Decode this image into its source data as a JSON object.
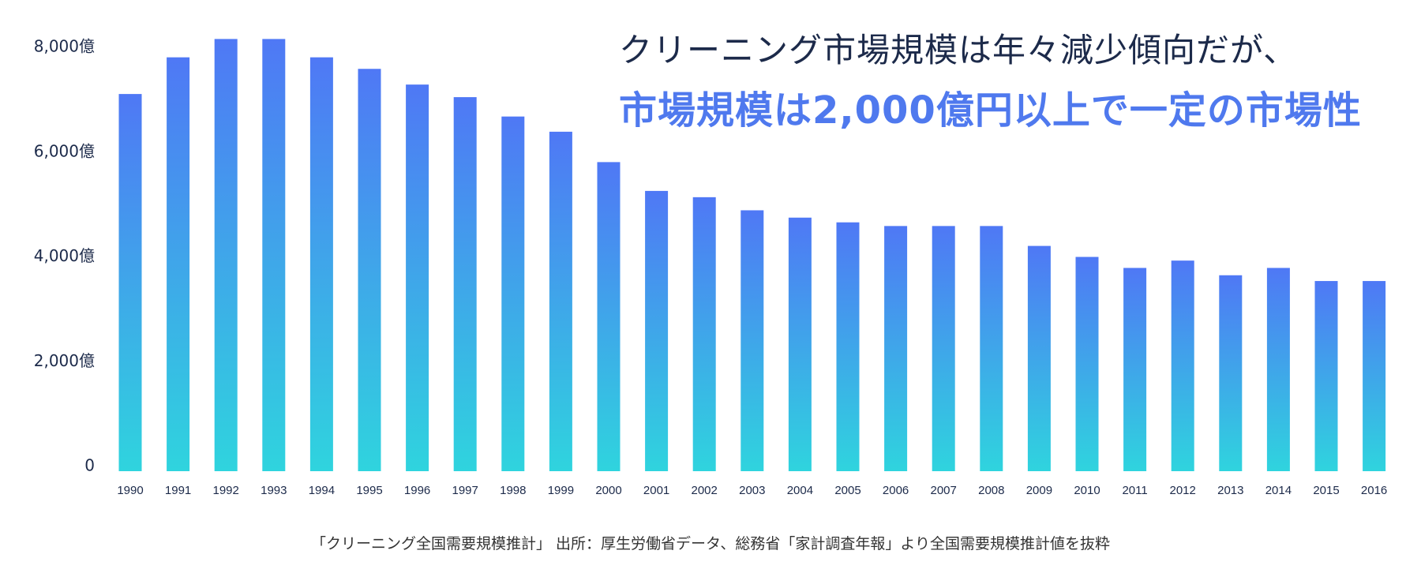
{
  "headline": {
    "line1": "クリーニング市場規模は年々減少傾向だが、",
    "line2": "市場規模は2,000億円以上で一定の市場性"
  },
  "source_note": "「クリーニング全国需要規模推計」 出所：厚生労働省データ、総務省「家計調査年報」より全国需要規模推計値を抜粋",
  "colors": {
    "headline_accent": "#4f79ee",
    "bar_top": "#4f78f5",
    "bar_bottom": "#2fd4de"
  },
  "chart_data": {
    "type": "bar",
    "title": "",
    "xlabel": "",
    "ylabel": "",
    "ylim": [
      0,
      8000
    ],
    "yticks": [
      0,
      2000,
      4000,
      6000,
      8000
    ],
    "ytick_labels": [
      "0",
      "2,000億",
      "4,000億",
      "6,000億",
      "8,000億"
    ],
    "grid": false,
    "categories": [
      "1990",
      "1991",
      "1992",
      "1993",
      "1994",
      "1995",
      "1996",
      "1997",
      "1998",
      "1999",
      "2000",
      "2001",
      "2002",
      "2003",
      "2004",
      "2005",
      "2006",
      "2007",
      "2008",
      "2009",
      "2010",
      "2011",
      "2012",
      "2013",
      "2014",
      "2015",
      "2016"
    ],
    "values": [
      7200,
      7900,
      8250,
      8250,
      7900,
      7680,
      7380,
      7140,
      6770,
      6480,
      5900,
      5350,
      5230,
      4980,
      4840,
      4750,
      4680,
      4680,
      4680,
      4300,
      4090,
      3880,
      4020,
      3740,
      3880,
      3630,
      3630
    ]
  }
}
